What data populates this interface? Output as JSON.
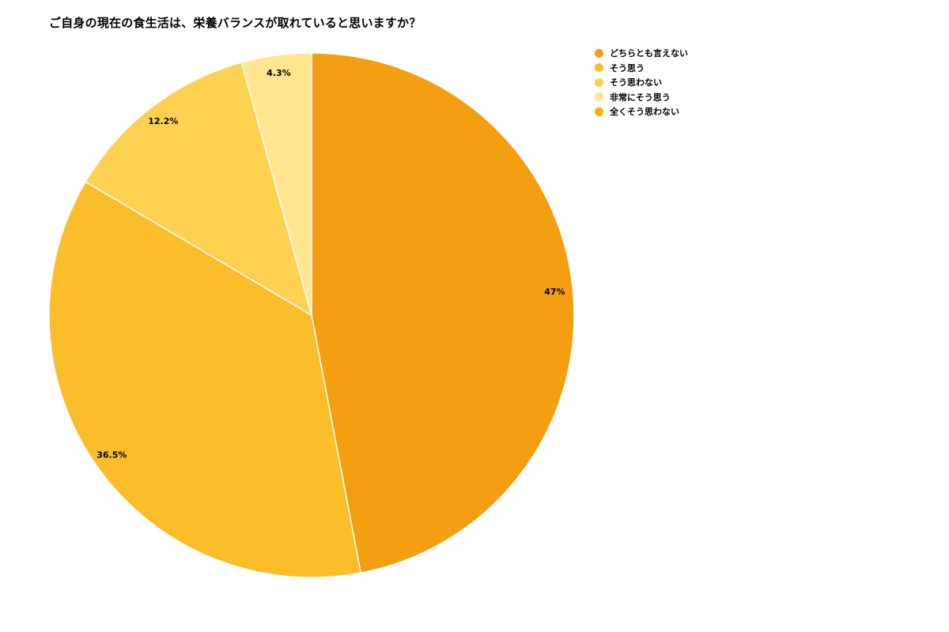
{
  "chart_data": {
    "type": "pie",
    "title": "ご自身の現在の食生活は、栄養バランスが取れていると思いますか？",
    "legend_position": "top-right",
    "legend": [
      {
        "label": "どちらとも言えない",
        "color": "#F49E12"
      },
      {
        "label": "そう思う",
        "color": "#FBBD2A"
      },
      {
        "label": "そう思わない",
        "color": "#FDD150"
      },
      {
        "label": "非常にそう思う",
        "color": "#FEE58E"
      },
      {
        "label": "全くそう思わない",
        "color": "#F6B200"
      }
    ],
    "slices": [
      {
        "label": "どちらとも言えない",
        "value": 47.0,
        "display": "47%",
        "color": "#F49E12"
      },
      {
        "label": "そう思う",
        "value": 36.5,
        "display": "36.5%",
        "color": "#FBBD2A"
      },
      {
        "label": "そう思わない",
        "value": 12.2,
        "display": "12.2%",
        "color": "#FDD150"
      },
      {
        "label": "非常にそう思う",
        "value": 4.3,
        "display": "4.3%",
        "color": "#FEE58E"
      }
    ]
  }
}
